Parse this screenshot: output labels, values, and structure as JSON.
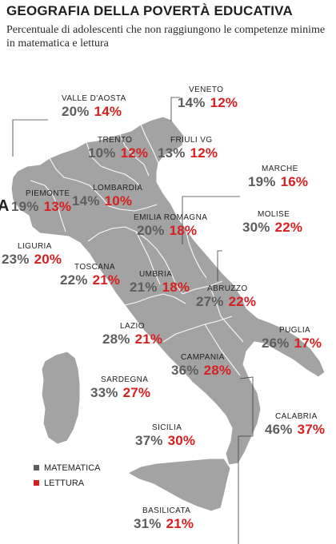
{
  "title": "GEOGRAFIA DELLA POVERTÀ EDUCATIVA",
  "subtitle": "Percentuale di adolescenti che non raggiungono le competenze minime in matematica e lettura",
  "edge_glyph": "A",
  "colors": {
    "matematica": "#5d5d5d",
    "lettura": "#d71f1f",
    "map": "#a3a3a3"
  },
  "legend": [
    {
      "label": "MATEMATICA",
      "color": "#5d5d5d"
    },
    {
      "label": "LETTURA",
      "color": "#d71f1f"
    }
  ],
  "regions": [
    {
      "name": "VALLE D'AOSTA",
      "matematica": "20%",
      "lettura": "14%"
    },
    {
      "name": "VENETO",
      "matematica": "14%",
      "lettura": "12%"
    },
    {
      "name": "TRENTO",
      "matematica": "10%",
      "lettura": "12%"
    },
    {
      "name": "FRIULI VG",
      "matematica": "13%",
      "lettura": "12%"
    },
    {
      "name": "MARCHE",
      "matematica": "19%",
      "lettura": "16%"
    },
    {
      "name": "LOMBARDIA",
      "matematica": "14%",
      "lettura": "10%"
    },
    {
      "name": "PIEMONTE",
      "matematica": "19%",
      "lettura": "13%"
    },
    {
      "name": "EMILIA ROMAGNA",
      "matematica": "20%",
      "lettura": "18%"
    },
    {
      "name": "MOLISE",
      "matematica": "30%",
      "lettura": "22%"
    },
    {
      "name": "LIGURIA",
      "matematica": "23%",
      "lettura": "20%"
    },
    {
      "name": "TOSCANA",
      "matematica": "22%",
      "lettura": "21%"
    },
    {
      "name": "UMBRIA",
      "matematica": "21%",
      "lettura": "18%"
    },
    {
      "name": "ABRUZZO",
      "matematica": "27%",
      "lettura": "22%"
    },
    {
      "name": "LAZIO",
      "matematica": "28%",
      "lettura": "21%"
    },
    {
      "name": "PUGLIA",
      "matematica": "26%",
      "lettura": "17%"
    },
    {
      "name": "SARDEGNA",
      "matematica": "33%",
      "lettura": "27%"
    },
    {
      "name": "CAMPANIA",
      "matematica": "36%",
      "lettura": "28%"
    },
    {
      "name": "CALABRIA",
      "matematica": "46%",
      "lettura": "37%"
    },
    {
      "name": "SICILIA",
      "matematica": "37%",
      "lettura": "30%"
    },
    {
      "name": "BASILICATA",
      "matematica": "31%",
      "lettura": "21%"
    }
  ]
}
